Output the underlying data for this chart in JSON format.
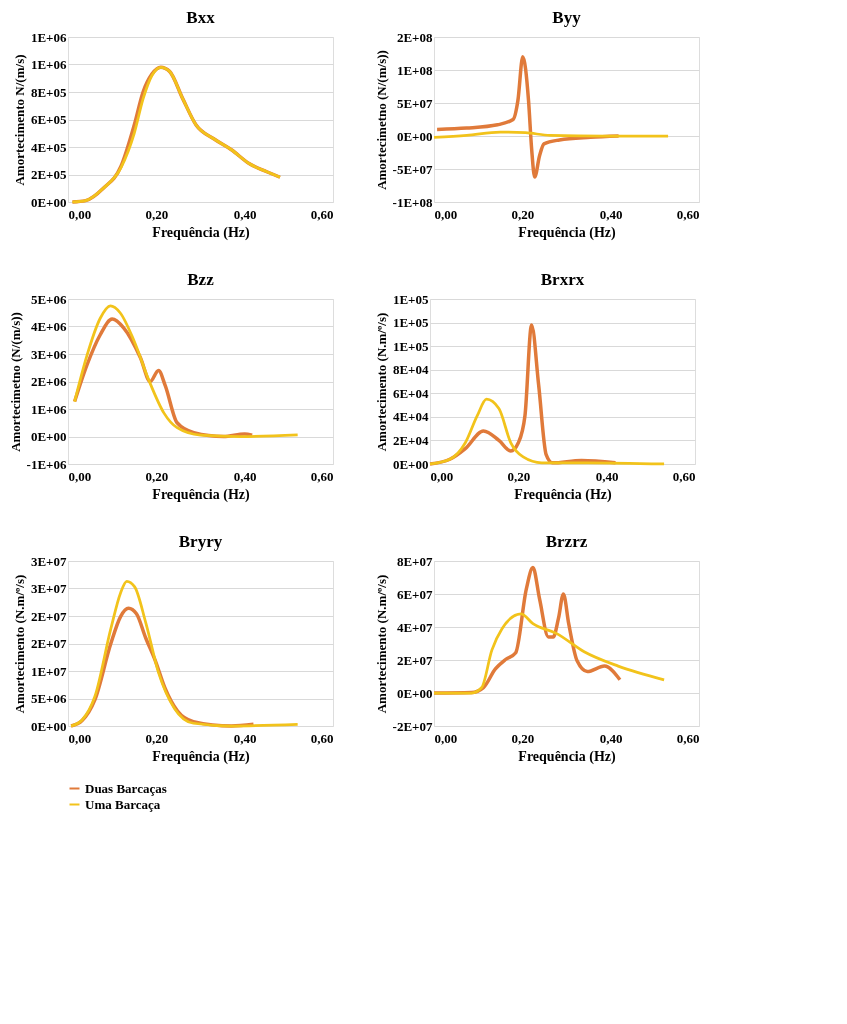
{
  "chart_data": [
    {
      "type": "line",
      "title": "Bxx",
      "xlabel": "Frequência (Hz)",
      "ylabel": "Amortecimento  N/(m/s)",
      "grid": "y",
      "legend": "bottom",
      "xlim": [
        0,
        0.6
      ],
      "xticks": [
        {
          "value": 0,
          "label": "0,00"
        },
        {
          "value": 0.2,
          "label": "0,20"
        },
        {
          "value": 0.4,
          "label": "0,40"
        },
        {
          "value": 0.6,
          "label": "0,60"
        }
      ],
      "ylim": [
        0,
        1200000
      ],
      "yticks": [
        {
          "value": 0,
          "label": "0E+00"
        },
        {
          "value": 200000,
          "label": "2E+05"
        },
        {
          "value": 400000,
          "label": "4E+05"
        },
        {
          "value": 600000,
          "label": "6E+05"
        },
        {
          "value": 800000,
          "label": "8E+05"
        },
        {
          "value": 1000000,
          "label": "1E+06"
        },
        {
          "value": 1200000,
          "label": "1E+06"
        }
      ],
      "series": [
        {
          "name": "Duas Barcaças",
          "color": "#e07a3a",
          "x": [
            0.01,
            0.04,
            0.08,
            0.12,
            0.15,
            0.17,
            0.19,
            0.21,
            0.23,
            0.26,
            0.29,
            0.33,
            0.37,
            0.41,
            0.45,
            0.48
          ],
          "values": [
            0,
            10000,
            100000,
            260000,
            560000,
            800000,
            930000,
            980000,
            950000,
            750000,
            560000,
            460000,
            380000,
            280000,
            220000,
            180000
          ]
        },
        {
          "name": "Uma Barcaça",
          "color": "#f2c31b",
          "x": [
            0.01,
            0.04,
            0.08,
            0.12,
            0.15,
            0.17,
            0.19,
            0.21,
            0.23,
            0.26,
            0.29,
            0.33,
            0.37,
            0.41,
            0.45,
            0.48
          ],
          "values": [
            0,
            10000,
            100000,
            250000,
            500000,
            750000,
            920000,
            980000,
            950000,
            750000,
            560000,
            460000,
            380000,
            280000,
            220000,
            180000
          ]
        }
      ]
    },
    {
      "type": "line",
      "title": "Byy",
      "xlabel": "Frequência (Hz)",
      "ylabel": "Amortecimetno (N/(m/s))",
      "grid": "y",
      "legend": "bottom",
      "xlim": [
        0,
        0.6
      ],
      "xticks": [
        {
          "value": 0,
          "label": "0,00"
        },
        {
          "value": 0.2,
          "label": "0,20"
        },
        {
          "value": 0.4,
          "label": "0,40"
        },
        {
          "value": 0.6,
          "label": "0,60"
        }
      ],
      "ylim": [
        -100000000,
        150000000
      ],
      "yticks": [
        {
          "value": -100000000,
          "label": "-1E+08"
        },
        {
          "value": -50000000,
          "label": "-5E+07"
        },
        {
          "value": 0,
          "label": "0E+00"
        },
        {
          "value": 50000000,
          "label": "5E+07"
        },
        {
          "value": 100000000,
          "label": "1E+08"
        },
        {
          "value": 150000000,
          "label": "2E+08"
        }
      ],
      "series": [
        {
          "name": "Duas Barcaças",
          "color": "#e07a3a",
          "x": [
            0.007,
            0.074,
            0.144,
            0.179,
            0.19,
            0.201,
            0.214,
            0.221,
            0.228,
            0.239,
            0.249,
            0.284,
            0.354,
            0.418
          ],
          "values": [
            10000000,
            12000000,
            17000000,
            25000000,
            54000000,
            120000000,
            54000000,
            -19000000,
            -62000000,
            -30000000,
            -12000000,
            -6000000,
            -2000000,
            0
          ]
        },
        {
          "name": "Uma Barcaça",
          "color": "#f2c31b",
          "x": [
            0.0,
            0.074,
            0.15,
            0.207,
            0.263,
            0.39,
            0.53
          ],
          "values": [
            -2000000,
            1000000,
            6000000,
            5000000,
            1000000,
            0,
            0
          ]
        }
      ]
    },
    {
      "type": "line",
      "title": "Bzz",
      "xlabel": "Frequência (Hz)",
      "ylabel": "Amortecimetno (N/(m/s))",
      "grid": "y",
      "legend": "bottom",
      "xlim": [
        0,
        0.6
      ],
      "xticks": [
        {
          "value": 0,
          "label": "0,00"
        },
        {
          "value": 0.2,
          "label": "0,20"
        },
        {
          "value": 0.4,
          "label": "0,40"
        },
        {
          "value": 0.6,
          "label": "0,60"
        }
      ],
      "ylim": [
        -1000000,
        5000000
      ],
      "yticks": [
        {
          "value": -1000000,
          "label": "-1E+06"
        },
        {
          "value": 0,
          "label": "0E+00"
        },
        {
          "value": 1000000,
          "label": "1E+06"
        },
        {
          "value": 2000000,
          "label": "2E+06"
        },
        {
          "value": 3000000,
          "label": "3E+06"
        },
        {
          "value": 4000000,
          "label": "4E+06"
        },
        {
          "value": 5000000,
          "label": "5E+06"
        }
      ],
      "series": [
        {
          "name": "Duas Barcaças",
          "color": "#e07a3a",
          "x": [
            0.015,
            0.043,
            0.073,
            0.1,
            0.126,
            0.164,
            0.186,
            0.205,
            0.22,
            0.247,
            0.285,
            0.352,
            0.4,
            0.417
          ],
          "values": [
            1270000,
            2600000,
            3700000,
            4270000,
            3950000,
            2860000,
            2000000,
            2400000,
            1860000,
            500000,
            140000,
            0,
            90000,
            50000
          ]
        },
        {
          "name": "Uma Barcaça",
          "color": "#f2c31b",
          "x": [
            0.015,
            0.043,
            0.073,
            0.096,
            0.118,
            0.149,
            0.183,
            0.217,
            0.247,
            0.3,
            0.39,
            0.52
          ],
          "values": [
            1270000,
            2950000,
            4300000,
            4750000,
            4500000,
            3500000,
            2050000,
            860000,
            320000,
            50000,
            0,
            60000
          ]
        }
      ]
    },
    {
      "type": "line",
      "title": "Brxrx",
      "xlabel": "Frequência (Hz)",
      "ylabel": "Amortecimento (N.m/º/s)",
      "grid": "y",
      "legend": "bottom",
      "xlim": [
        0,
        0.6
      ],
      "xticks": [
        {
          "value": 0,
          "label": "0,00"
        },
        {
          "value": 0.2,
          "label": "0,20"
        },
        {
          "value": 0.4,
          "label": "0,40"
        },
        {
          "value": 0.6,
          "label": "0,60"
        }
      ],
      "ylim": [
        0,
        140000
      ],
      "yticks": [
        {
          "value": 0,
          "label": "0E+00"
        },
        {
          "value": 20000,
          "label": "2E+04"
        },
        {
          "value": 40000,
          "label": "4E+04"
        },
        {
          "value": 60000,
          "label": "6E+04"
        },
        {
          "value": 80000,
          "label": "8E+04"
        },
        {
          "value": 100000,
          "label": "1E+05"
        },
        {
          "value": 120000,
          "label": "1E+05"
        },
        {
          "value": 140000,
          "label": "1E+05"
        }
      ],
      "series": [
        {
          "name": "Duas Barcaças",
          "color": "#e07a3a",
          "x": [
            0.0,
            0.045,
            0.08,
            0.121,
            0.156,
            0.183,
            0.2,
            0.215,
            0.23,
            0.246,
            0.263,
            0.277,
            0.343,
            0.42
          ],
          "values": [
            0,
            4000,
            13000,
            28000,
            20000,
            11000,
            18000,
            41000,
            118000,
            67000,
            8000,
            1000,
            3000,
            1000
          ]
        },
        {
          "name": "Uma Barcaça",
          "color": "#f2c31b",
          "x": [
            0.0,
            0.045,
            0.08,
            0.107,
            0.128,
            0.156,
            0.183,
            0.211,
            0.253,
            0.356,
            0.53
          ],
          "values": [
            0,
            4000,
            18000,
            41000,
            55000,
            47000,
            18000,
            6000,
            1000,
            1000,
            0
          ]
        }
      ]
    },
    {
      "type": "line",
      "title": "Bryry",
      "xlabel": "Frequência (Hz)",
      "ylabel": "Amortecimento (N.m/º/s)",
      "grid": "y",
      "legend": "bottom",
      "xlim": [
        0,
        0.6
      ],
      "xticks": [
        {
          "value": 0,
          "label": "0,00"
        },
        {
          "value": 0.2,
          "label": "0,20"
        },
        {
          "value": 0.4,
          "label": "0,40"
        },
        {
          "value": 0.6,
          "label": "0,60"
        }
      ],
      "ylim": [
        0,
        30000000
      ],
      "yticks": [
        {
          "value": 0,
          "label": "0E+00"
        },
        {
          "value": 5000000,
          "label": "5E+06"
        },
        {
          "value": 10000000,
          "label": "1E+07"
        },
        {
          "value": 15000000,
          "label": "2E+07"
        },
        {
          "value": 20000000,
          "label": "2E+07"
        },
        {
          "value": 25000000,
          "label": "3E+07"
        },
        {
          "value": 30000000,
          "label": "3E+07"
        }
      ],
      "series": [
        {
          "name": "Duas Barcaças",
          "color": "#e07a3a",
          "x": [
            0.007,
            0.032,
            0.061,
            0.097,
            0.119,
            0.137,
            0.155,
            0.176,
            0.198,
            0.219,
            0.248,
            0.284,
            0.37,
            0.42
          ],
          "values": [
            0,
            1000000,
            4800000,
            15000000,
            19900000,
            21400000,
            20400000,
            16000000,
            11800000,
            7000000,
            2700000,
            800000,
            0,
            300000
          ]
        },
        {
          "name": "Uma Barcaça",
          "color": "#f2c31b",
          "x": [
            0.007,
            0.032,
            0.061,
            0.097,
            0.119,
            0.133,
            0.151,
            0.176,
            0.205,
            0.241,
            0.284,
            0.37,
            0.52
          ],
          "values": [
            0,
            1100000,
            5400000,
            17700000,
            24200000,
            26300000,
            25300000,
            18800000,
            9700000,
            3200000,
            500000,
            0,
            300000
          ]
        }
      ]
    },
    {
      "type": "line",
      "title": "Brzrz",
      "xlabel": "Frequência (Hz)",
      "ylabel": "Amortecimento (N.m/º/s)",
      "grid": "y",
      "legend": "bottom",
      "xlim": [
        0,
        0.6
      ],
      "xticks": [
        {
          "value": 0,
          "label": "0,00"
        },
        {
          "value": 0.2,
          "label": "0,20"
        },
        {
          "value": 0.4,
          "label": "0,40"
        },
        {
          "value": 0.6,
          "label": "0,60"
        }
      ],
      "ylim": [
        -20000000,
        80000000
      ],
      "yticks": [
        {
          "value": -20000000,
          "label": "-2E+07"
        },
        {
          "value": 0,
          "label": "0E+00"
        },
        {
          "value": 20000000,
          "label": "2E+07"
        },
        {
          "value": 40000000,
          "label": "4E+07"
        },
        {
          "value": 60000000,
          "label": "6E+07"
        },
        {
          "value": 80000000,
          "label": "8E+07"
        }
      ],
      "series": [
        {
          "name": "Duas Barcaças",
          "color": "#e07a3a",
          "x": [
            0.0,
            0.085,
            0.112,
            0.139,
            0.162,
            0.185,
            0.209,
            0.224,
            0.239,
            0.259,
            0.27,
            0.282,
            0.293,
            0.305,
            0.324,
            0.347,
            0.386,
            0.421
          ],
          "values": [
            0,
            300000,
            3300000,
            14600000,
            20300000,
            24400000,
            63000000,
            76000000,
            57000000,
            34000000,
            34000000,
            45500000,
            60000000,
            42000000,
            19500000,
            13000000,
            16300000,
            8000000
          ]
        },
        {
          "name": "Uma Barcaça",
          "color": "#f2c31b",
          "x": [
            0.0,
            0.085,
            0.108,
            0.131,
            0.154,
            0.197,
            0.224,
            0.278,
            0.34,
            0.417,
            0.521
          ],
          "values": [
            0,
            0,
            3300000,
            26000000,
            39000000,
            48000000,
            42000000,
            36000000,
            25000000,
            16300000,
            8000000
          ]
        }
      ]
    }
  ]
}
